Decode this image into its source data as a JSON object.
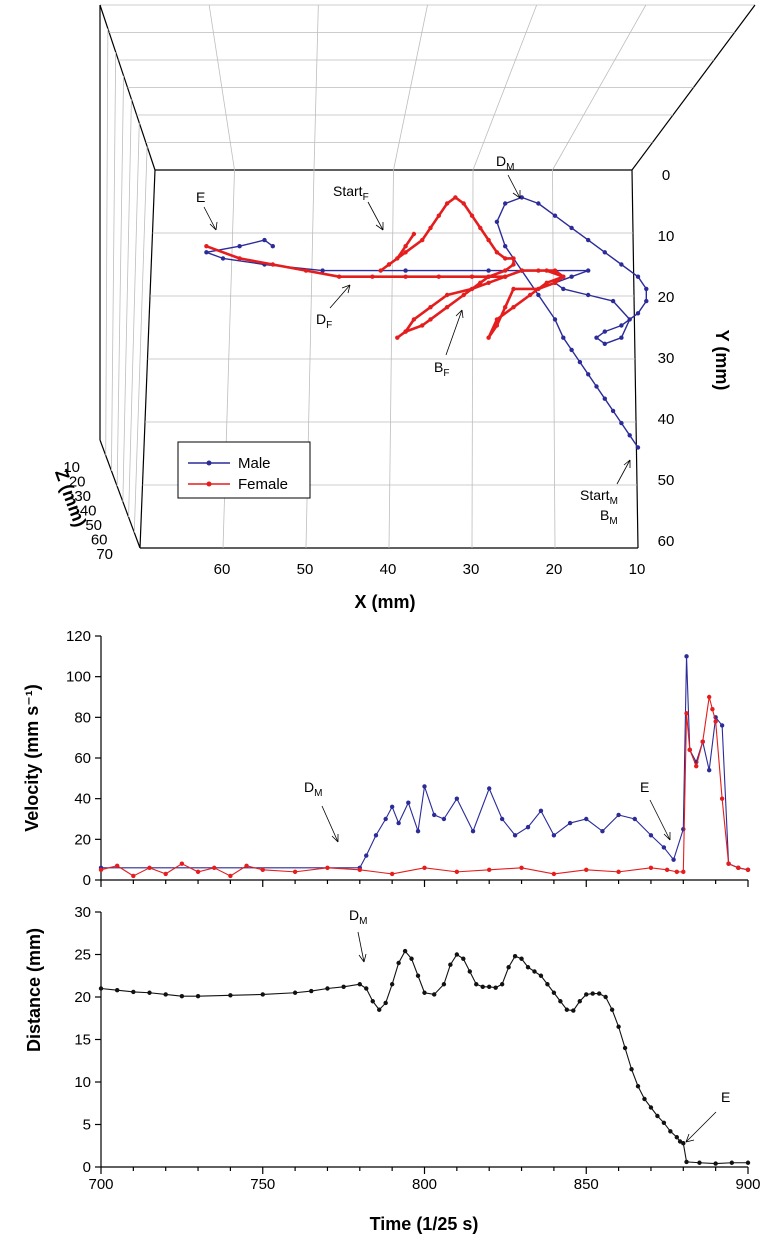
{
  "chart_data": [
    {
      "type": "line",
      "panel": "3d-trajectory",
      "xlabel": "X (mm)",
      "ylabel": "Y (mm)",
      "zlabel": "Z (mm)",
      "x_ticks": [
        "60",
        "50",
        "40",
        "30",
        "20",
        "10"
      ],
      "y_ticks": [
        "0",
        "10",
        "20",
        "30",
        "40",
        "50",
        "60"
      ],
      "z_ticks": [
        "10",
        "20",
        "30",
        "40",
        "50",
        "60",
        "70"
      ],
      "xlim": [
        10,
        65
      ],
      "ylim": [
        0,
        60
      ],
      "zlim": [
        10,
        70
      ],
      "legend": {
        "placement": "bottom-left",
        "entries": [
          "Male",
          "Female"
        ]
      },
      "colors": {
        "male": "#2b2b9a",
        "female": "#e51d1d"
      },
      "annotations": {
        "E": "E",
        "start_f": "Start",
        "start_f_sub": "F",
        "d_m": "D",
        "d_m_sub": "M",
        "d_f": "D",
        "d_f_sub": "F",
        "b_f": "B",
        "b_f_sub": "F",
        "start_m": "Start",
        "start_m_sub": "M",
        "b_m": "B",
        "b_m_sub": "M"
      },
      "series": [
        {
          "name": "Male",
          "x": [
            10,
            11,
            12,
            13,
            14,
            15,
            16,
            17,
            18,
            19,
            20,
            22,
            24,
            26,
            27,
            26,
            24,
            22,
            20,
            18,
            16,
            14,
            12,
            10,
            9,
            9,
            10,
            12,
            14,
            15,
            14,
            12,
            11,
            13,
            16,
            19,
            20,
            18,
            16,
            28,
            38,
            48,
            55,
            60,
            62,
            58,
            55,
            54
          ],
          "y": [
            45,
            43,
            41,
            39,
            37,
            35,
            33,
            31,
            29,
            27,
            24,
            20,
            16,
            12,
            8,
            5,
            4,
            5,
            7,
            9,
            11,
            13,
            15,
            17,
            19,
            21,
            23,
            25,
            26,
            27,
            28,
            27,
            24,
            21,
            20,
            19,
            18,
            17,
            16,
            16,
            16,
            16,
            15,
            14,
            13,
            12,
            11,
            12
          ]
        },
        {
          "name": "Female",
          "x": [
            37,
            38,
            39,
            40,
            41,
            40,
            38,
            36,
            35,
            34,
            33,
            32,
            31,
            30,
            29,
            28,
            27,
            26,
            25,
            25,
            26,
            28,
            29,
            31,
            33,
            35,
            36,
            38,
            39,
            38,
            37,
            35,
            33,
            30,
            28,
            26,
            24,
            22,
            20,
            19,
            21,
            23,
            25,
            27,
            28,
            27,
            26,
            25,
            22,
            20,
            19,
            21,
            24,
            26,
            28,
            30,
            34,
            38,
            42,
            46,
            50,
            54,
            58,
            62
          ],
          "y": [
            10,
            12,
            14,
            15,
            16,
            15,
            13,
            11,
            9,
            7,
            5,
            4,
            5,
            7,
            9,
            11,
            13,
            14,
            14,
            15,
            16,
            17,
            18,
            20,
            22,
            24,
            25,
            26,
            27,
            26,
            24,
            22,
            20,
            19,
            18,
            17,
            16,
            16,
            16,
            17,
            18,
            20,
            22,
            24,
            27,
            25,
            22,
            19,
            19,
            18,
            17,
            16,
            16,
            17,
            17,
            17,
            17,
            17,
            17,
            17,
            16,
            15,
            14,
            12
          ]
        }
      ]
    },
    {
      "type": "line",
      "panel": "velocity",
      "xlabel": "",
      "ylabel": "Velocity (mm s⁻¹)",
      "xlim": [
        700,
        900
      ],
      "ylim": [
        0,
        120
      ],
      "x_ticks": [
        700,
        750,
        800,
        850,
        900
      ],
      "y_ticks": [
        0,
        20,
        40,
        60,
        80,
        100,
        120
      ],
      "annotations": {
        "d_m": "D",
        "d_m_sub": "M",
        "E": "E"
      },
      "series": [
        {
          "name": "Male",
          "x": [
            700,
            780,
            782,
            785,
            788,
            790,
            792,
            795,
            798,
            800,
            803,
            806,
            810,
            815,
            820,
            824,
            828,
            832,
            836,
            840,
            845,
            850,
            855,
            860,
            865,
            870,
            874,
            877,
            880,
            881,
            882,
            884,
            886,
            888,
            890,
            892,
            894,
            897,
            900
          ],
          "y": [
            6,
            6,
            12,
            22,
            30,
            36,
            28,
            38,
            24,
            46,
            32,
            30,
            40,
            24,
            45,
            30,
            22,
            26,
            34,
            22,
            28,
            30,
            24,
            32,
            30,
            22,
            16,
            10,
            25,
            110,
            64,
            58,
            68,
            54,
            80,
            76,
            8,
            6,
            5
          ]
        },
        {
          "name": "Female",
          "x": [
            700,
            705,
            710,
            715,
            720,
            725,
            730,
            735,
            740,
            745,
            750,
            760,
            770,
            780,
            790,
            800,
            810,
            820,
            830,
            840,
            850,
            860,
            870,
            875,
            878,
            880,
            881,
            882,
            884,
            886,
            888,
            889,
            890,
            892,
            894,
            897,
            900
          ],
          "y": [
            5,
            7,
            2,
            6,
            3,
            8,
            4,
            6,
            2,
            7,
            5,
            4,
            6,
            5,
            3,
            6,
            4,
            5,
            6,
            3,
            5,
            4,
            6,
            5,
            4,
            4,
            82,
            64,
            56,
            68,
            90,
            84,
            78,
            40,
            8,
            6,
            5
          ]
        }
      ]
    },
    {
      "type": "line",
      "panel": "distance",
      "xlabel": "Time (1/25 s)",
      "ylabel": "Distance (mm)",
      "xlim": [
        700,
        900
      ],
      "ylim": [
        0,
        30
      ],
      "x_ticks": [
        700,
        750,
        800,
        850,
        900
      ],
      "y_ticks": [
        0,
        5,
        10,
        15,
        20,
        25,
        30
      ],
      "annotations": {
        "d_m": "D",
        "d_m_sub": "M",
        "E": "E"
      },
      "series": [
        {
          "name": "",
          "x": [
            700,
            705,
            710,
            715,
            720,
            725,
            730,
            740,
            750,
            760,
            765,
            770,
            775,
            780,
            782,
            784,
            786,
            788,
            790,
            792,
            794,
            796,
            798,
            800,
            803,
            806,
            808,
            810,
            812,
            814,
            816,
            818,
            820,
            822,
            824,
            826,
            828,
            830,
            832,
            834,
            836,
            838,
            840,
            842,
            844,
            846,
            848,
            850,
            852,
            854,
            856,
            858,
            860,
            862,
            864,
            866,
            868,
            870,
            872,
            874,
            876,
            878,
            879,
            880,
            881,
            885,
            890,
            895,
            900
          ],
          "y": [
            21,
            20.8,
            20.6,
            20.5,
            20.3,
            20.1,
            20.1,
            20.2,
            20.3,
            20.5,
            20.7,
            21,
            21.2,
            21.5,
            21,
            19.5,
            18.5,
            19.3,
            21.5,
            24,
            25.4,
            24.5,
            22.5,
            20.5,
            20.3,
            21.5,
            23.8,
            25,
            24.5,
            23,
            21.5,
            21.2,
            21.2,
            21.1,
            21.5,
            23.5,
            24.8,
            24.5,
            23.5,
            23,
            22.5,
            21.5,
            20.5,
            19.5,
            18.5,
            18.4,
            19.5,
            20.3,
            20.4,
            20.4,
            20,
            18.5,
            16.5,
            14,
            11.5,
            9.5,
            8,
            7,
            6,
            5.2,
            4.2,
            3.5,
            3,
            2.8,
            0.6,
            0.5,
            0.4,
            0.5,
            0.5
          ]
        }
      ]
    }
  ]
}
